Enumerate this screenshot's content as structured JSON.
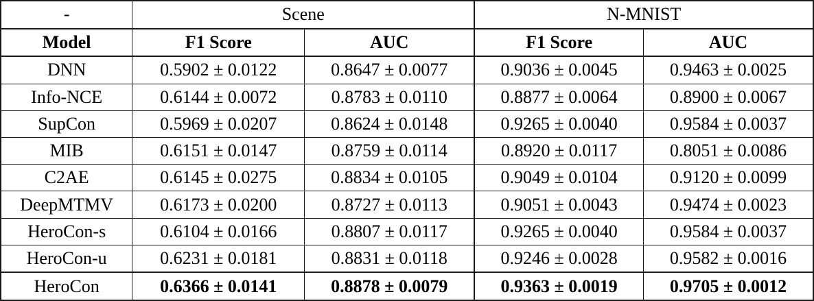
{
  "table": {
    "header_row_1": {
      "model_placeholder": "-",
      "group_scene": "Scene",
      "group_nmnist": "N-MNIST"
    },
    "header_row_2": {
      "model": "Model",
      "scene_f1": "F1 Score",
      "scene_auc": "AUC",
      "nmnist_f1": "F1 Score",
      "nmnist_auc": "AUC"
    },
    "rows": [
      {
        "model": "DNN",
        "values": [
          "0.5902 ± 0.0122",
          "0.8647 ± 0.0077",
          "0.9036 ± 0.0045",
          "0.9463 ± 0.0025"
        ]
      },
      {
        "model": "Info-NCE",
        "values": [
          "0.6144 ± 0.0072",
          "0.8783 ± 0.0110",
          "0.8877 ± 0.0064",
          "0.8900 ± 0.0067"
        ]
      },
      {
        "model": "SupCon",
        "values": [
          "0.5969 ± 0.0207",
          "0.8624 ± 0.0148",
          "0.9265 ± 0.0040",
          "0.9584 ± 0.0037"
        ]
      },
      {
        "model": "MIB",
        "values": [
          "0.6151 ± 0.0147",
          "0.8759 ± 0.0114",
          "0.8920 ± 0.0117",
          "0.8051 ± 0.0086"
        ]
      },
      {
        "model": "C2AE",
        "values": [
          "0.6145 ± 0.0275",
          "0.8834 ± 0.0105",
          "0.9049 ± 0.0104",
          "0.9120 ± 0.0099"
        ]
      },
      {
        "model": "DeepMTMV",
        "values": [
          "0.6173 ± 0.0200",
          "0.8727 ± 0.0113",
          "0.9051 ± 0.0043",
          "0.9474 ± 0.0023"
        ]
      },
      {
        "model": "HeroCon-s",
        "values": [
          "0.6104 ± 0.0166",
          "0.8807 ± 0.0117",
          "0.9265 ± 0.0040",
          "0.9584 ± 0.0037"
        ]
      },
      {
        "model": "HeroCon-u",
        "values": [
          "0.6231 ± 0.0181",
          "0.8831 ± 0.0118",
          "0.9246 ± 0.0028",
          "0.9582 ± 0.0016"
        ]
      },
      {
        "model": "HeroCon",
        "values": [
          "0.6366 ± 0.0141",
          "0.8878 ± 0.0079",
          "0.9363 ± 0.0019",
          "0.9705 ± 0.0012"
        ],
        "emphasis": "bold-values"
      }
    ]
  },
  "colors": {
    "border": "#1a1a1a",
    "text": "#000000",
    "background": "#ffffff"
  }
}
